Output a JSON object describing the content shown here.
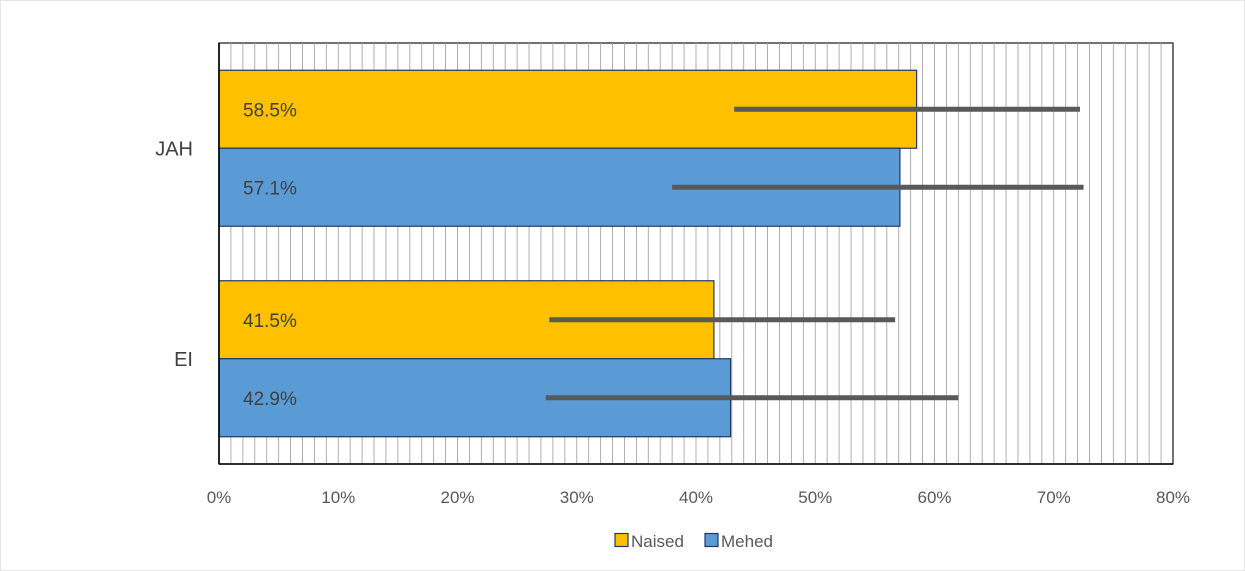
{
  "chart_data": {
    "type": "bar",
    "orientation": "horizontal",
    "categories": [
      "JAH",
      "EI"
    ],
    "series": [
      {
        "name": "Naised",
        "color": "#FFC000",
        "values": [
          0.585,
          0.415
        ],
        "labels": [
          "58.5%",
          "41.5%"
        ],
        "error_low": [
          0.432,
          0.277
        ],
        "error_high": [
          0.722,
          0.567
        ]
      },
      {
        "name": "Mehed",
        "color": "#5B9BD5",
        "values": [
          0.571,
          0.429
        ],
        "labels": [
          "57.1%",
          "42.9%"
        ],
        "error_low": [
          0.38,
          0.274
        ],
        "error_high": [
          0.725,
          0.62
        ]
      }
    ],
    "xlim": [
      0,
      0.8
    ],
    "x_ticks": [
      0,
      0.1,
      0.2,
      0.3,
      0.4,
      0.5,
      0.6,
      0.7,
      0.8
    ],
    "x_tick_labels": [
      "0%",
      "10%",
      "20%",
      "30%",
      "40%",
      "50%",
      "60%",
      "70%",
      "80%"
    ],
    "grid": "vertical",
    "legend_position": "bottom",
    "bar_outline_color": "#1F3864",
    "error_bar_color": "#595959",
    "grid_color": "#A6A6A6"
  }
}
